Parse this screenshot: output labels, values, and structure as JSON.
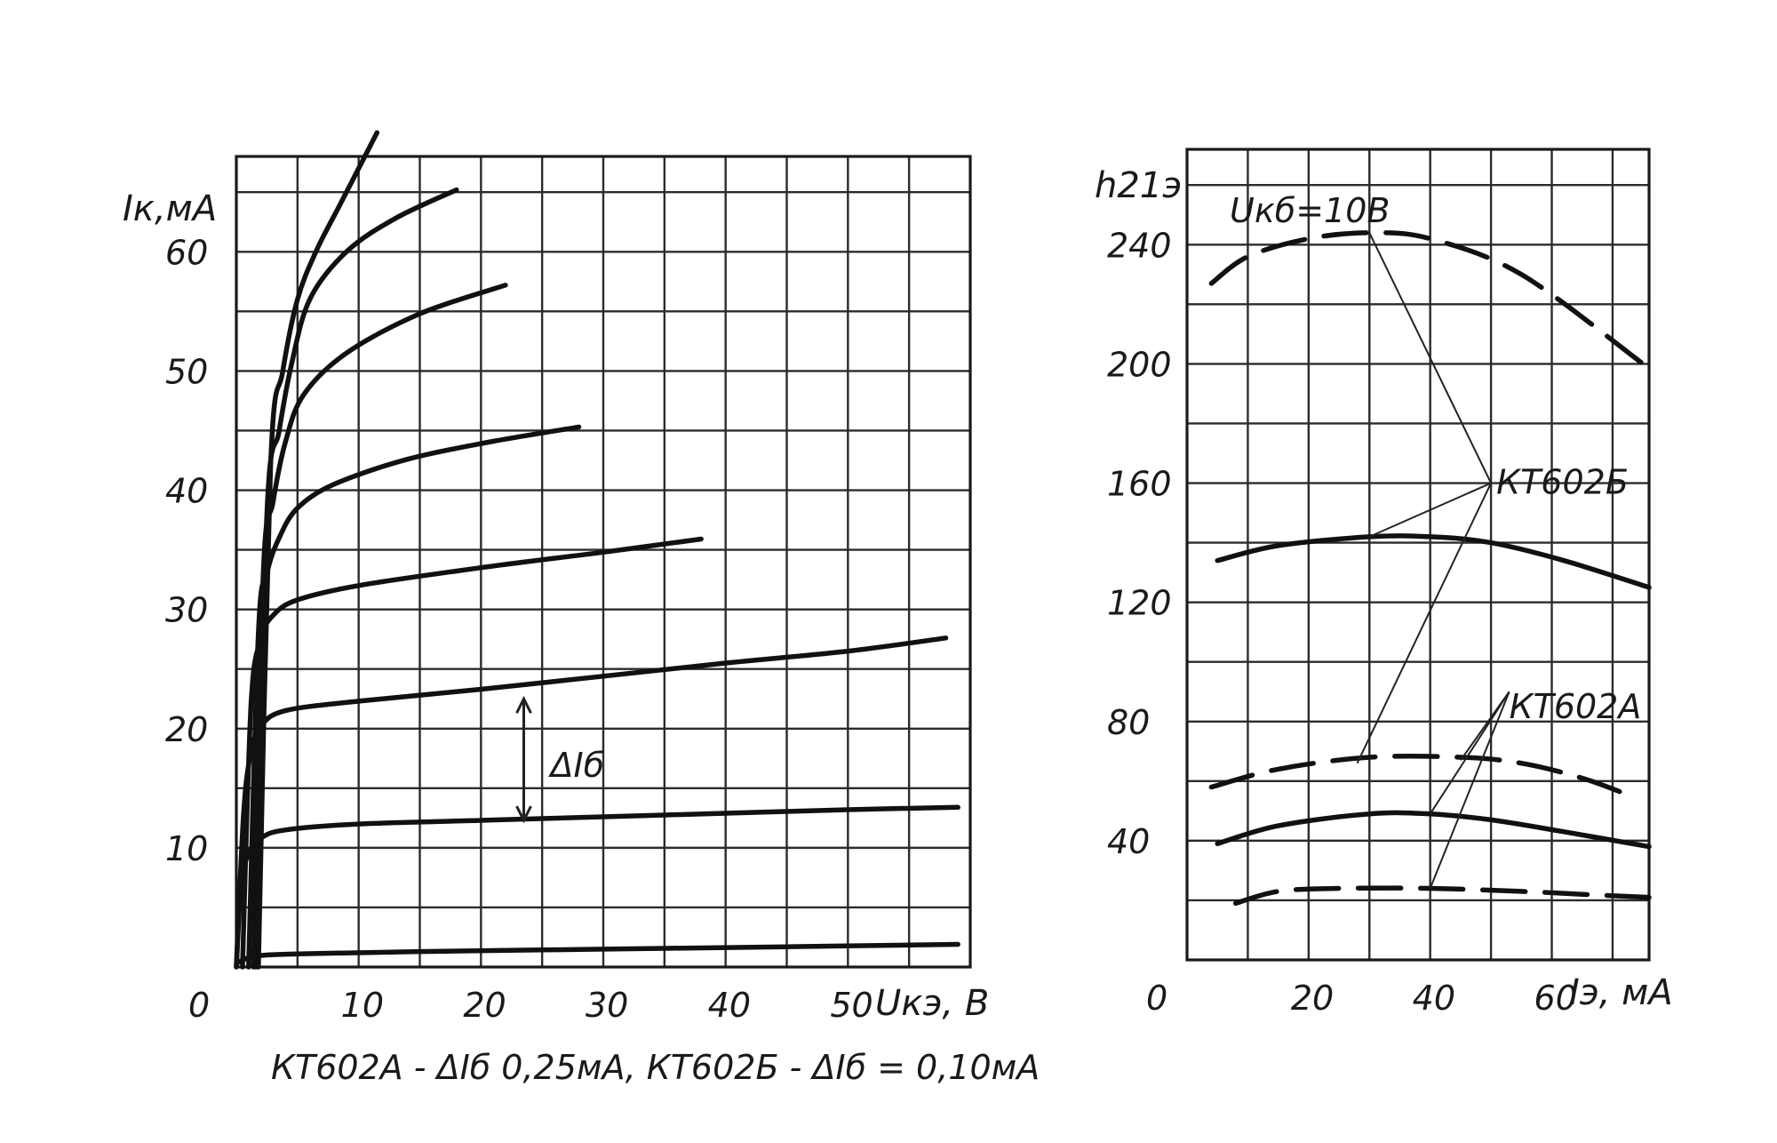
{
  "chart_data": [
    {
      "type": "line",
      "ylabel": "Iк,мА",
      "xlabel": "Uкэ, В",
      "x_ticks": [
        "0",
        "10",
        "20",
        "30",
        "40",
        "50"
      ],
      "y_ticks": [
        "10",
        "20",
        "30",
        "40",
        "50",
        "60"
      ],
      "xlim": [
        0,
        60
      ],
      "ylim": [
        0,
        68
      ],
      "grid": true,
      "footnote": "КТ602А - ΔIб  0,25мА, КТ602Б - ΔIб = 0,10мА",
      "annotation": "ΔIб",
      "annotation_points": {
        "x": 23.5,
        "y_top": 22.5,
        "y_bottom": 12.3
      },
      "series": [
        {
          "x": [
            0,
            1.5,
            5,
            15,
            30,
            45,
            59
          ],
          "y": [
            0.3,
            0.9,
            1.1,
            1.3,
            1.5,
            1.7,
            1.9
          ]
        },
        {
          "x": [
            0,
            0.4,
            1.0,
            2.0,
            4.0,
            10,
            20,
            30,
            40,
            50,
            59
          ],
          "y": [
            0,
            7,
            9.5,
            10.8,
            11.5,
            12.0,
            12.3,
            12.6,
            12.9,
            13.2,
            13.4
          ]
        },
        {
          "x": [
            0,
            0.6,
            1.2,
            2.0,
            4.0,
            10,
            20,
            30,
            40,
            50,
            58
          ],
          "y": [
            0,
            13,
            18,
            20.2,
            21.5,
            22.3,
            23.3,
            24.4,
            25.5,
            26.5,
            27.6
          ]
        },
        {
          "x": [
            0.5,
            1.2,
            2.0,
            3.0,
            5.0,
            10,
            20,
            30,
            38
          ],
          "y": [
            0,
            22,
            27.5,
            29.5,
            30.8,
            32.0,
            33.5,
            34.8,
            35.9
          ]
        },
        {
          "x": [
            1.0,
            1.8,
            2.5,
            3.5,
            5.0,
            8.0,
            14,
            21,
            28
          ],
          "y": [
            0,
            28,
            33,
            36,
            38.5,
            40.5,
            42.6,
            44.1,
            45.3
          ]
        },
        {
          "x": [
            1.4,
            2.2,
            3.0,
            4.0,
            5.5,
            9.0,
            15,
            22
          ],
          "y": [
            0,
            33,
            39,
            44,
            48,
            51.5,
            54.8,
            57.2
          ]
        },
        {
          "x": [
            1.6,
            2.5,
            3.5,
            4.5,
            6.0,
            9.0,
            13,
            18
          ],
          "y": [
            0,
            38,
            45,
            50.5,
            56,
            60,
            62.8,
            65.2
          ]
        },
        {
          "x": [
            1.8,
            2.8,
            3.8,
            5.0,
            6.5,
            8.5,
            10.5,
            11.5
          ],
          "y": [
            0,
            42,
            50,
            56,
            60,
            64,
            68,
            70
          ]
        }
      ]
    },
    {
      "type": "line",
      "ylabel": "h21э",
      "xlabel": "Iэ, мА",
      "x_ticks": [
        "0",
        "20",
        "40",
        "60"
      ],
      "y_ticks": [
        "40",
        "80",
        "120",
        "160",
        "200",
        "240"
      ],
      "xlim": [
        0,
        76
      ],
      "ylim": [
        0,
        272
      ],
      "grid": true,
      "condition": "Uкб=10В",
      "labels": [
        "КТ602Б",
        "КТ602А"
      ],
      "label_positions": {
        "КТ602Б": {
          "x": 50,
          "y": 160
        },
        "КТ602А": {
          "x": 53,
          "y": 90
        }
      },
      "series": [
        {
          "dashed": true,
          "x": [
            4,
            10,
            20,
            30,
            40,
            55,
            75
          ],
          "y": [
            227,
            236,
            242,
            244,
            242,
            230,
            200
          ]
        },
        {
          "dashed": false,
          "x": [
            5,
            15,
            30,
            40,
            50,
            62,
            76
          ],
          "y": [
            134,
            139,
            142,
            142,
            140,
            134,
            125
          ]
        },
        {
          "dashed": true,
          "x": [
            4,
            15,
            30,
            45,
            55,
            65,
            73
          ],
          "y": [
            58,
            64,
            68,
            68,
            66,
            61,
            55
          ]
        },
        {
          "dashed": false,
          "x": [
            5,
            15,
            30,
            40,
            50,
            62,
            76
          ],
          "y": [
            39,
            45,
            49,
            49,
            47,
            43,
            38
          ]
        },
        {
          "dashed": true,
          "x": [
            8,
            15,
            25,
            40,
            55,
            65,
            76
          ],
          "y": [
            19,
            23,
            24,
            24,
            23,
            22,
            21
          ]
        }
      ]
    }
  ]
}
